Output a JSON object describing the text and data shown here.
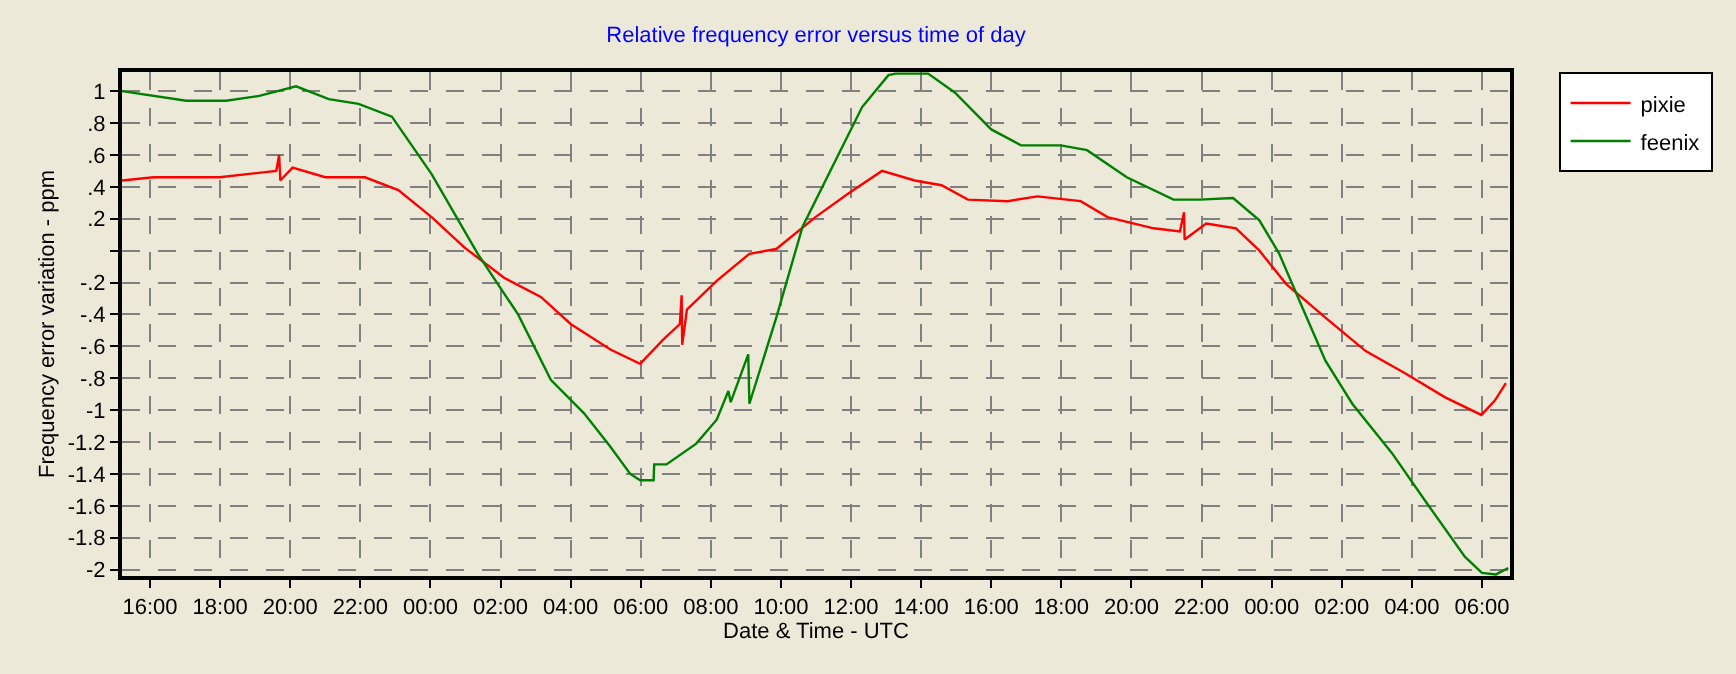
{
  "chart_data": {
    "type": "line",
    "title": "Relative frequency error versus time of day",
    "xlabel": "Date & Time - UTC",
    "ylabel": "Frequency error variation - ppm",
    "xlim": [
      "--01-01T15:12",
      "--01-03T06:48"
    ],
    "ylim": [
      -2.04,
      1.12
    ],
    "xticks": [
      {
        "value": "--01-01T16:00",
        "label": "16:00"
      },
      {
        "value": "--01-01T18:00",
        "label": "18:00"
      },
      {
        "value": "--01-01T20:00",
        "label": "20:00"
      },
      {
        "value": "--01-01T22:00",
        "label": "22:00"
      },
      {
        "value": "--01-02T00:00",
        "label": "00:00"
      },
      {
        "value": "--01-02T02:00",
        "label": "02:00"
      },
      {
        "value": "--01-02T04:00",
        "label": "04:00"
      },
      {
        "value": "--01-02T06:00",
        "label": "06:00"
      },
      {
        "value": "--01-02T08:00",
        "label": "08:00"
      },
      {
        "value": "--01-02T10:00",
        "label": "10:00"
      },
      {
        "value": "--01-02T12:00",
        "label": "12:00"
      },
      {
        "value": "--01-02T14:00",
        "label": "14:00"
      },
      {
        "value": "--01-02T16:00",
        "label": "16:00"
      },
      {
        "value": "--01-02T18:00",
        "label": "18:00"
      },
      {
        "value": "--01-02T20:00",
        "label": "20:00"
      },
      {
        "value": "--01-02T22:00",
        "label": "22:00"
      },
      {
        "value": "--01-03T00:00",
        "label": "00:00"
      },
      {
        "value": "--01-03T02:00",
        "label": "02:00"
      },
      {
        "value": "--01-03T04:00",
        "label": "04:00"
      },
      {
        "value": "--01-03T06:00",
        "label": "06:00"
      }
    ],
    "yticks": [
      1,
      {
        "value": 0.8,
        "label": ".8"
      },
      {
        "value": 0.6,
        "label": ".6"
      },
      {
        "value": 0.4,
        "label": ".4"
      },
      {
        "value": 0.2,
        "label": ".2"
      },
      {
        "value": 0,
        "label": null
      },
      {
        "value": -0.2,
        "label": "-.2"
      },
      {
        "value": -0.4,
        "label": "-.4"
      },
      {
        "value": -0.6,
        "label": "-.6"
      },
      {
        "value": -0.8,
        "label": "-.8"
      },
      -1,
      -1.2,
      -1.4,
      -1.6,
      -1.8,
      -2
    ],
    "grid": true,
    "legend": "top right",
    "line_style": "solid",
    "series": [
      {
        "name": "pixie",
        "color": "#ff0000",
        "x": [
          "--01-01T15:12",
          "--01-01T16:06",
          "--01-01T17:59",
          "--01-01T19:36",
          "--01-01T19:41",
          "--01-01T19:43",
          "--01-01T20:04",
          "--01-01T21:00",
          "--01-01T22:08",
          "--01-01T23:05",
          "--01-02T00:02",
          "--01-02T00:58",
          "--01-02T02:06",
          "--01-02T03:09",
          "--01-02T04:00",
          "--01-02T05:08",
          "--01-02T05:59",
          "--01-02T06:38",
          "--01-02T07:07",
          "--01-02T07:10",
          "--01-02T07:11",
          "--01-02T07:19",
          "--01-02T08:10",
          "--01-02T09:06",
          "--01-02T09:52",
          "--01-02T10:59",
          "--01-02T11:56",
          "--01-02T12:53",
          "--01-02T13:49",
          "--01-02T14:35",
          "--01-02T15:20",
          "--01-02T16:28",
          "--01-02T17:19",
          "--01-02T18:33",
          "--01-02T19:19",
          "--01-02T20:38",
          "--01-02T21:23",
          "--01-02T21:30",
          "--01-02T21:31",
          "--01-02T22:08",
          "--01-02T22:59",
          "--01-02T23:39",
          "--01-03T00:25",
          "--01-03T01:32",
          "--01-03T02:41",
          "--01-03T03:49",
          "--01-03T04:57",
          "--01-03T05:59",
          "--01-03T06:22",
          "--01-03T06:41"
        ],
        "values": [
          0.44,
          0.46,
          0.46,
          0.5,
          0.6,
          0.44,
          0.52,
          0.46,
          0.46,
          0.38,
          0.21,
          0.02,
          -0.17,
          -0.29,
          -0.46,
          -0.62,
          -0.71,
          -0.56,
          -0.46,
          -0.28,
          -0.59,
          -0.37,
          -0.19,
          -0.02,
          0.01,
          0.21,
          0.36,
          0.5,
          0.44,
          0.41,
          0.32,
          0.31,
          0.34,
          0.31,
          0.21,
          0.14,
          0.12,
          0.24,
          0.07,
          0.17,
          0.14,
          0.0,
          -0.21,
          -0.42,
          -0.63,
          -0.77,
          -0.92,
          -1.03,
          -0.94,
          -0.83
        ]
      },
      {
        "name": "feenix",
        "color": "#008000",
        "x": [
          "--01-01T15:12",
          "--01-01T17:02",
          "--01-01T18:10",
          "--01-01T19:07",
          "--01-01T20:10",
          "--01-01T21:06",
          "--01-01T21:57",
          "--01-01T22:54",
          "--01-02T00:02",
          "--01-02T01:21",
          "--01-02T02:30",
          "--01-02T03:26",
          "--01-02T04:23",
          "--01-02T05:08",
          "--01-02T05:42",
          "--01-02T05:59",
          "--01-02T06:22",
          "--01-02T06:23",
          "--01-02T06:44",
          "--01-02T07:35",
          "--01-02T08:10",
          "--01-02T08:30",
          "--01-02T08:34",
          "--01-02T09:04",
          "--01-02T09:06",
          "--01-02T09:52",
          "--01-02T10:37",
          "--01-02T11:34",
          "--01-02T12:19",
          "--01-02T13:04",
          "--01-02T13:16",
          "--01-02T14:12",
          "--01-02T14:58",
          "--01-02T16:00",
          "--01-02T16:51",
          "--01-02T17:59",
          "--01-02T18:44",
          "--01-02T19:52",
          "--01-02T21:12",
          "--01-02T21:57",
          "--01-02T22:54",
          "--01-02T23:39",
          "--01-03T00:13",
          "--01-03T00:47",
          "--01-03T01:32",
          "--01-03T02:18",
          "--01-03T03:26",
          "--01-03T04:23",
          "--01-03T05:31",
          "--01-03T06:00",
          "--01-03T06:24",
          "--01-03T06:45"
        ],
        "values": [
          1.0,
          0.94,
          0.94,
          0.97,
          1.03,
          0.95,
          0.92,
          0.84,
          0.48,
          -0.02,
          -0.4,
          -0.81,
          -1.02,
          -1.23,
          -1.4,
          -1.44,
          -1.44,
          -1.34,
          -1.34,
          -1.21,
          -1.06,
          -0.88,
          -0.95,
          -0.65,
          -0.96,
          -0.42,
          0.15,
          0.57,
          0.9,
          1.1,
          1.11,
          1.11,
          0.99,
          0.76,
          0.66,
          0.66,
          0.63,
          0.46,
          0.32,
          0.32,
          0.33,
          0.19,
          -0.02,
          -0.31,
          -0.69,
          -0.96,
          -1.27,
          -1.57,
          -1.92,
          -2.02,
          -2.03,
          -1.99
        ]
      }
    ]
  }
}
